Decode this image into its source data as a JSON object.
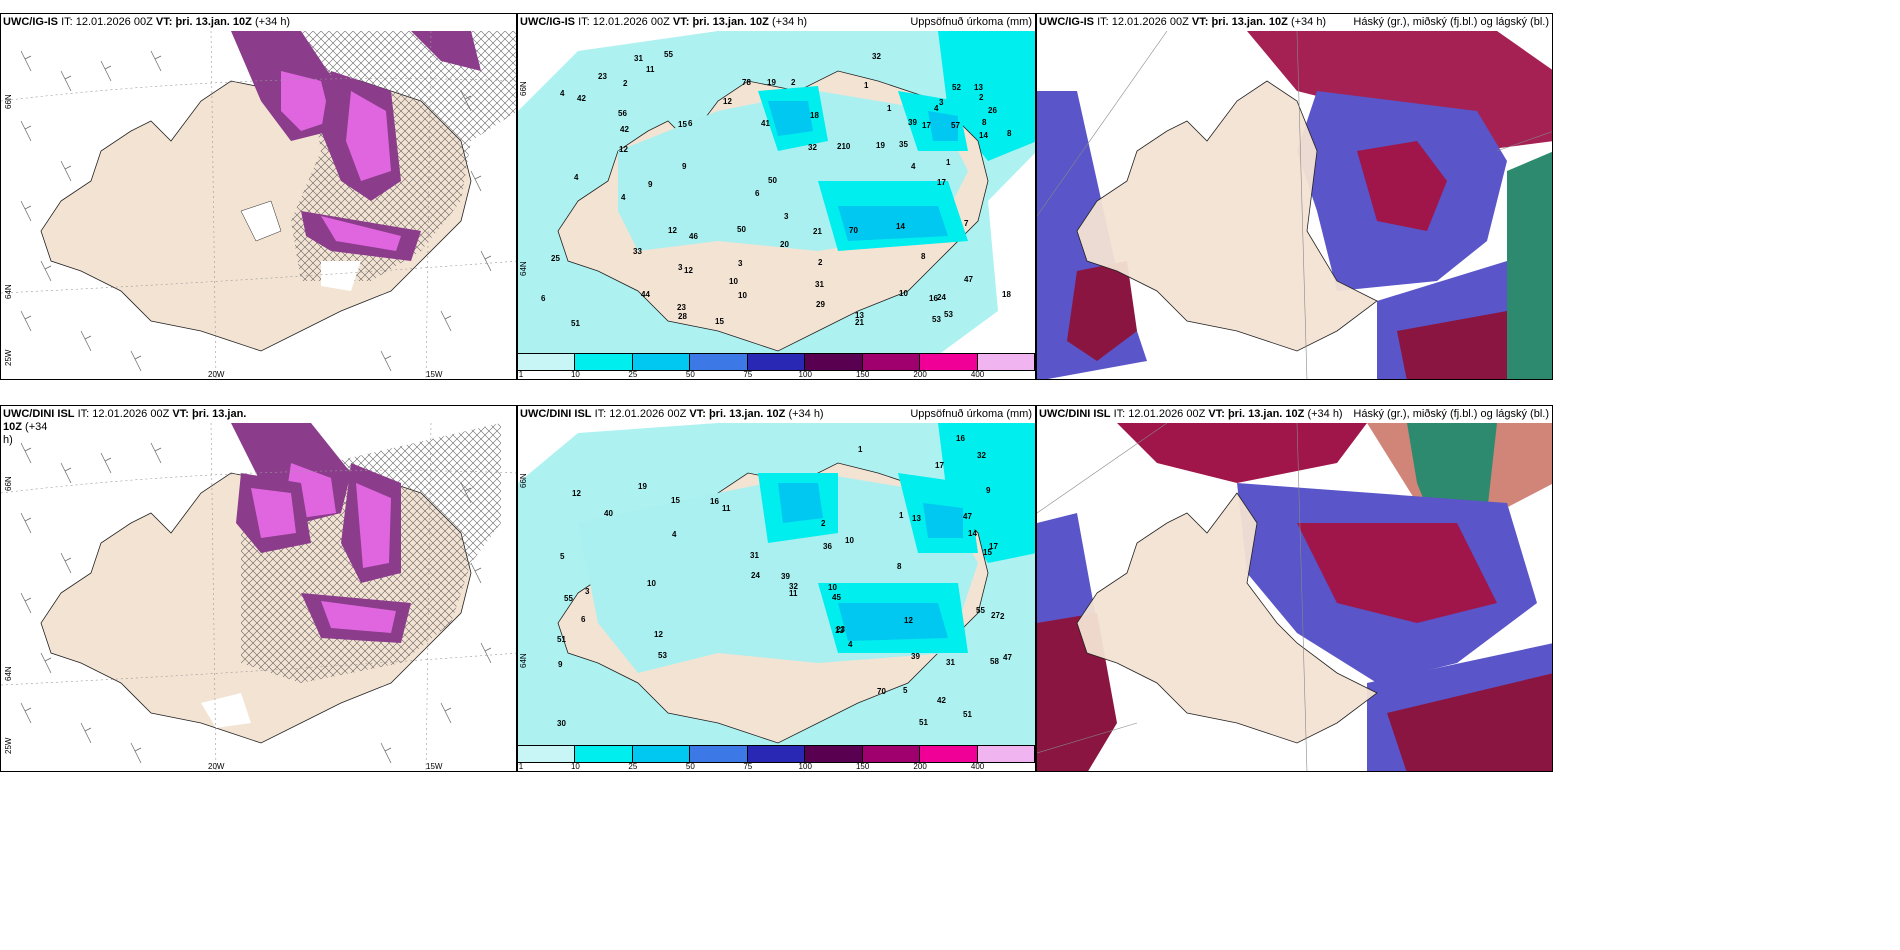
{
  "panels": {
    "top_left": {
      "model": "UWC/IG-IS",
      "it_label": "IT:",
      "it_value": "12.01.2026 00Z",
      "vt_label": "VT:",
      "vt_value": "þri. 13.jan. 10Z",
      "lead": "(+34 h)",
      "lat_labels": [
        "66N",
        "64N",
        "25W"
      ],
      "lon_labels": [
        "20W",
        "15W"
      ]
    },
    "top_mid": {
      "model": "UWC/IG-IS",
      "it_label": "IT:",
      "it_value": "12.01.2026 00Z",
      "vt_label": "VT:",
      "vt_value": "þri. 13.jan. 10Z",
      "lead": "(+34 h)",
      "right_title": "Uppsöfnuð úrkoma (mm)",
      "lat_labels": [
        "66N",
        "64N"
      ]
    },
    "top_right": {
      "model": "UWC/IG-IS",
      "it_label": "IT:",
      "it_value": "12.01.2026 00Z",
      "vt_label": "VT:",
      "vt_value": "þri. 13.jan. 10Z",
      "lead": "(+34 h)",
      "right_title": "Háský (gr.), miðský (fj.bl.) og lágský (bl.)"
    },
    "bottom_left": {
      "model": "UWC/DINI ISL",
      "it_label": "IT:",
      "it_value": "12.01.2026 00Z",
      "vt_label": "VT:",
      "vt_value": "þri. 13.jan. 10Z",
      "lead": "(+34",
      "lead2": "h)",
      "lat_labels": [
        "66N",
        "64N",
        "25W"
      ],
      "lon_labels": [
        "20W",
        "15W"
      ]
    },
    "bottom_mid": {
      "model": "UWC/DINI ISL",
      "it_label": "IT:",
      "it_value": "12.01.2026 00Z",
      "vt_label": "VT:",
      "vt_value": "þri. 13.jan. 10Z",
      "lead": "(+34 h)",
      "right_title": "Uppsöfnuð úrkoma (mm)",
      "lat_labels": [
        "66N",
        "64N"
      ]
    },
    "bottom_right": {
      "model": "UWC/DINI ISL",
      "it_label": "IT:",
      "it_value": "12.01.2026 00Z",
      "vt_label": "VT:",
      "vt_value": "þri. 13.jan. 10Z",
      "lead": "(+34 h)",
      "right_title": "Háský (gr.), miðský (fj.bl.) og lágský (bl.)"
    }
  },
  "precip_legend": {
    "labels": [
      "1",
      "10",
      "25",
      "50",
      "75",
      "100",
      "150",
      "200",
      "400"
    ],
    "colors": [
      "#c8f5f5",
      "#00eeee",
      "#00c8f0",
      "#3c78e6",
      "#2828b4",
      "#5a0050",
      "#a0006e",
      "#f00096",
      "#f0b4f0"
    ]
  },
  "top_precip_numbers": [
    "2",
    "8",
    "2",
    "8",
    "17",
    "17",
    "19",
    "20",
    "12",
    "2",
    "10",
    "19",
    "47",
    "52",
    "23",
    "18",
    "44",
    "50",
    "56",
    "35",
    "32",
    "39",
    "53",
    "46",
    "42",
    "53",
    "31",
    "70",
    "25",
    "24",
    "21",
    "14",
    "78",
    "12",
    "15",
    "13",
    "51",
    "31",
    "7",
    "28",
    "18",
    "6",
    "23",
    "16",
    "21",
    "12",
    "15",
    "57",
    "13",
    "12",
    "10",
    "11",
    "33",
    "29",
    "210",
    "9",
    "10",
    "41",
    "26",
    "55",
    "42",
    "50",
    "3",
    "4",
    "9",
    "32",
    "14",
    "3",
    "4",
    "3",
    "1",
    "4",
    "1",
    "4",
    "3",
    "6",
    "6",
    "1",
    "2",
    "8",
    "4"
  ],
  "bottom_precip_numbers": [
    "1",
    "19",
    "27",
    "10",
    "45",
    "23",
    "15",
    "40",
    "39",
    "51",
    "6",
    "15",
    "42",
    "51",
    "53",
    "31",
    "13",
    "5",
    "9",
    "16",
    "17",
    "17",
    "14",
    "39",
    "32",
    "30",
    "9",
    "3",
    "2",
    "4",
    "47",
    "55",
    "12",
    "11",
    "16",
    "5",
    "12",
    "10",
    "11",
    "32",
    "31",
    "10",
    "24",
    "36",
    "55",
    "58",
    "12",
    "51",
    "13",
    "70",
    "47",
    "4",
    "8",
    "2",
    "1"
  ],
  "colors": {
    "land": "#f3e3d3",
    "sea": "#ffffff",
    "precip_light": "#aaf0f0",
    "precip_cyan": "#00eeee",
    "precip_blue": "#00c8f0",
    "snow_purple": "#8b3c8b",
    "snow_magenta": "#e066e0",
    "cloud_high": "#a0154a",
    "cloud_mid": "#5a55c8",
    "cloud_low": "#2d8a6e"
  }
}
